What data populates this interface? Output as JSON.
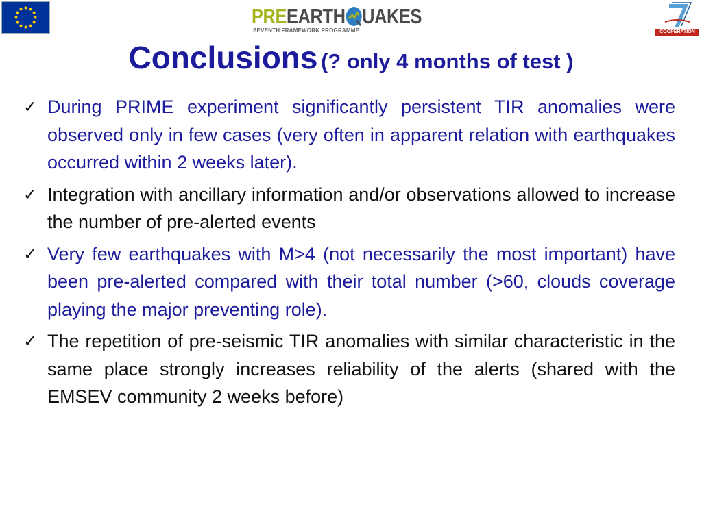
{
  "header": {
    "eu_flag_icon": "eu-flag-icon",
    "logo": {
      "pre": "PRE",
      "earth": "EARTH",
      "q_icon": "globe-q-icon",
      "uakes": "UAKES",
      "subtitle": "SEVENTH FRAMEWORK PROGRAMME"
    },
    "fp7_logo": {
      "number": "7",
      "label": "COOPERATION"
    }
  },
  "title": {
    "main": "Conclusions",
    "sub": "(? only 4 months of test )"
  },
  "bullets": [
    {
      "text": "During PRIME experiment significantly persistent TIR anomalies were observed only in few cases (very often in apparent relation with earthquakes occurred within 2 weeks later).",
      "color": "#1b1b9b"
    },
    {
      "text": "Integration with ancillary information and/or observations allowed to increase the number of pre-alerted events",
      "color": "#111111"
    },
    {
      "text": "Very few earthquakes with M>4 (not necessarily the most important) have been pre-alerted compared with their total number (>60, clouds coverage playing the major preventing role).",
      "color": "#1b1b9b"
    },
    {
      "text": "The repetition of  pre-seismic TIR anomalies with similar characteristic in the same place  strongly increases reliability of the alerts (shared with the EMSEV community 2 weeks before)",
      "color": "#111111"
    }
  ],
  "check_glyph": "✓",
  "colors": {
    "title_blue": "#1b1b9b",
    "eu_blue": "#003399",
    "eu_star_yellow": "#ffcc00",
    "logo_green": "#a6b51e",
    "logo_gray": "#4a4a4a",
    "fp7_red": "#c0281e"
  }
}
